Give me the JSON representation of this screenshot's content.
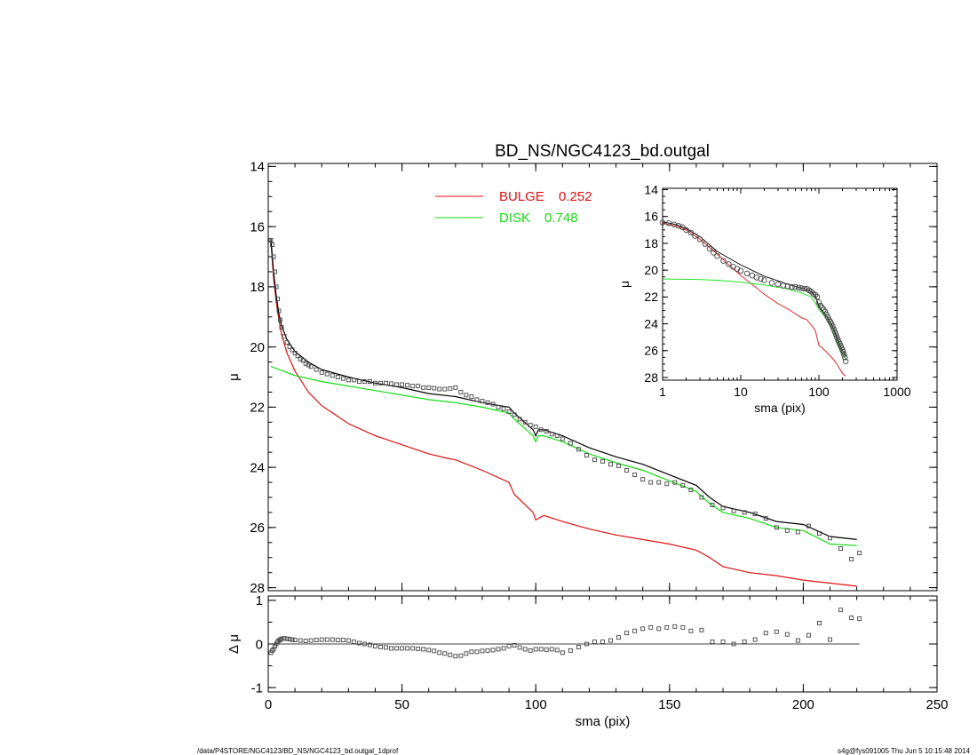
{
  "title": "BD_NS/NGC4123_bd.outgal",
  "footer": {
    "path": "/data/P4STORE/NGC4123/BD_NS/NGC4123_bd.outgal_1dprof",
    "stamp": "s4g@fys091005  Thu Jun  5 10:15:48 2014"
  },
  "colors": {
    "bulge": "#dd1111",
    "disk": "#11dd11",
    "total": "#000000",
    "data": "#555555"
  },
  "chart_data": [
    {
      "id": "main",
      "type": "line",
      "title": "BD_NS/NGC4123_bd.outgal",
      "ylabel": "μ",
      "xlim": [
        0,
        250
      ],
      "ylim": [
        28.1,
        13.9
      ],
      "y_inverted": true,
      "yticks": [
        14,
        16,
        18,
        20,
        22,
        24,
        26,
        28
      ],
      "legend": {
        "placement": "top-center",
        "entries": [
          {
            "name": "BULGE",
            "value": "0.252",
            "color": "#dd1111"
          },
          {
            "name": "DISK",
            "value": "0.748",
            "color": "#11dd11"
          }
        ]
      },
      "series": [
        {
          "name": "BULGE",
          "color": "#dd1111",
          "x": [
            1,
            2,
            3,
            4,
            5,
            7,
            10,
            15,
            20,
            30,
            40,
            50,
            60,
            67,
            70,
            80,
            90,
            92,
            99,
            100,
            103,
            110,
            120,
            130,
            140,
            150,
            160,
            165,
            170,
            180,
            190,
            200,
            210,
            220
          ],
          "y": [
            16.5,
            17.7,
            18.5,
            19.1,
            19.6,
            20.2,
            20.8,
            21.5,
            21.95,
            22.55,
            22.95,
            23.25,
            23.55,
            23.7,
            23.75,
            24.1,
            24.5,
            24.9,
            25.5,
            25.75,
            25.6,
            25.8,
            26.05,
            26.25,
            26.4,
            26.55,
            26.75,
            27.0,
            27.3,
            27.5,
            27.6,
            27.75,
            27.85,
            27.95
          ]
        },
        {
          "name": "DISK",
          "color": "#11dd11",
          "x": [
            1,
            10,
            20,
            40,
            60,
            70,
            80,
            90,
            92,
            99,
            100,
            101,
            103,
            110,
            120,
            130,
            140,
            150,
            160,
            165,
            170,
            180,
            190,
            200,
            210,
            220
          ],
          "y": [
            20.65,
            20.95,
            21.15,
            21.45,
            21.75,
            21.85,
            22.0,
            22.2,
            22.4,
            22.95,
            23.15,
            22.95,
            22.95,
            23.15,
            23.55,
            23.85,
            24.1,
            24.45,
            24.8,
            25.2,
            25.5,
            25.7,
            26.0,
            26.1,
            26.55,
            26.6
          ]
        },
        {
          "name": "Total",
          "color": "#000000",
          "x": [
            1,
            2,
            3,
            4,
            5,
            7,
            10,
            15,
            20,
            30,
            40,
            50,
            60,
            70,
            80,
            90,
            92,
            99,
            100,
            101,
            103,
            110,
            120,
            130,
            140,
            150,
            160,
            165,
            170,
            180,
            190,
            200,
            210,
            220
          ],
          "y": [
            16.4,
            17.5,
            18.3,
            18.9,
            19.3,
            19.75,
            20.15,
            20.5,
            20.75,
            21.0,
            21.2,
            21.35,
            21.55,
            21.65,
            21.85,
            22.0,
            22.2,
            22.75,
            22.95,
            22.75,
            22.75,
            22.95,
            23.35,
            23.65,
            23.9,
            24.25,
            24.6,
            25.0,
            25.3,
            25.5,
            25.8,
            25.9,
            26.3,
            26.4
          ]
        }
      ],
      "points": {
        "name": "data",
        "marker": "square",
        "x": [
          1,
          1.5,
          2,
          2.5,
          3,
          3.5,
          4,
          4.5,
          5,
          6,
          7,
          8,
          9,
          10,
          11,
          12,
          13,
          14,
          15,
          16,
          18,
          20,
          22,
          24,
          26,
          28,
          30,
          32,
          34,
          36,
          38,
          40,
          42,
          44,
          46,
          48,
          50,
          52,
          54,
          56,
          58,
          60,
          62,
          64,
          66,
          68,
          70,
          72,
          74,
          76,
          78,
          80,
          82,
          84,
          86,
          88,
          90,
          92,
          94,
          96,
          98,
          100,
          102,
          104,
          106,
          108,
          110,
          113,
          116,
          119,
          122,
          125,
          128,
          131,
          134,
          137,
          140,
          143,
          146,
          149,
          152,
          155,
          158,
          162,
          166,
          170,
          174,
          178,
          182,
          186,
          190,
          194,
          198,
          202,
          206,
          210,
          214,
          218,
          221
        ],
        "y": [
          16.45,
          16.6,
          17.0,
          17.5,
          18.0,
          18.4,
          18.8,
          19.1,
          19.35,
          19.65,
          19.85,
          20.0,
          20.1,
          20.2,
          20.3,
          20.4,
          20.45,
          20.55,
          20.6,
          20.65,
          20.75,
          20.85,
          20.9,
          20.95,
          21.0,
          21.05,
          21.1,
          21.1,
          21.15,
          21.15,
          21.15,
          21.2,
          21.2,
          21.2,
          21.22,
          21.25,
          21.25,
          21.27,
          21.3,
          21.3,
          21.35,
          21.35,
          21.37,
          21.4,
          21.4,
          21.38,
          21.35,
          21.5,
          21.6,
          21.65,
          21.75,
          21.8,
          21.85,
          21.9,
          22.0,
          22.05,
          22.15,
          22.25,
          22.4,
          22.5,
          22.6,
          22.65,
          22.75,
          22.8,
          22.9,
          22.95,
          23.05,
          23.2,
          23.4,
          23.6,
          23.75,
          23.8,
          23.9,
          23.95,
          24.1,
          24.25,
          24.4,
          24.5,
          24.5,
          24.55,
          24.5,
          24.6,
          24.75,
          25.0,
          25.25,
          25.35,
          25.45,
          25.5,
          25.55,
          25.7,
          26.0,
          26.1,
          26.15,
          25.95,
          26.2,
          26.35,
          26.7,
          27.05,
          26.85
        ]
      }
    },
    {
      "id": "residual",
      "type": "scatter",
      "xlabel": "sma (pix)",
      "ylabel": "Δ μ",
      "xlim": [
        0,
        250
      ],
      "ylim": [
        -1.1,
        1.1
      ],
      "xticks": [
        0,
        50,
        100,
        150,
        200,
        250
      ],
      "yticks": [
        -1,
        0,
        1
      ],
      "zero_line": true,
      "points": {
        "marker": "square",
        "x": [
          1,
          1.5,
          2,
          2.5,
          3,
          3.5,
          4,
          4.5,
          5,
          6,
          7,
          8,
          9,
          10,
          12,
          14,
          16,
          18,
          20,
          22,
          24,
          26,
          28,
          30,
          32,
          34,
          36,
          38,
          40,
          42,
          44,
          46,
          48,
          50,
          52,
          54,
          56,
          58,
          60,
          62,
          64,
          66,
          68,
          70,
          72,
          74,
          76,
          78,
          80,
          82,
          84,
          86,
          88,
          90,
          92,
          94,
          96,
          98,
          100,
          102,
          104,
          106,
          108,
          110,
          113,
          116,
          119,
          122,
          125,
          128,
          131,
          134,
          137,
          140,
          143,
          146,
          149,
          152,
          155,
          158,
          162,
          166,
          170,
          174,
          178,
          182,
          186,
          190,
          194,
          198,
          202,
          206,
          210,
          214,
          218,
          221
        ],
        "y": [
          -0.2,
          -0.15,
          -0.12,
          -0.05,
          0.0,
          0.05,
          0.08,
          0.1,
          0.12,
          0.13,
          0.12,
          0.11,
          0.1,
          0.09,
          0.08,
          0.07,
          0.08,
          0.09,
          0.1,
          0.1,
          0.1,
          0.09,
          0.09,
          0.08,
          0.05,
          0.02,
          0.0,
          -0.02,
          -0.05,
          -0.07,
          -0.08,
          -0.1,
          -0.1,
          -0.1,
          -0.1,
          -0.1,
          -0.11,
          -0.12,
          -0.14,
          -0.16,
          -0.2,
          -0.22,
          -0.25,
          -0.28,
          -0.27,
          -0.22,
          -0.18,
          -0.18,
          -0.16,
          -0.15,
          -0.14,
          -0.12,
          -0.1,
          -0.05,
          -0.03,
          -0.08,
          -0.12,
          -0.15,
          -0.12,
          -0.12,
          -0.13,
          -0.12,
          -0.14,
          -0.2,
          -0.15,
          -0.07,
          0.0,
          0.05,
          0.05,
          0.08,
          0.15,
          0.25,
          0.3,
          0.35,
          0.38,
          0.35,
          0.38,
          0.4,
          0.38,
          0.3,
          0.32,
          0.05,
          0.05,
          0.0,
          0.05,
          0.1,
          0.25,
          0.28,
          0.22,
          0.08,
          0.2,
          0.48,
          0.1,
          0.78,
          0.6,
          0.58
        ]
      }
    },
    {
      "id": "inset",
      "type": "line",
      "xlabel": "sma (pix)",
      "ylabel": "μ",
      "xscale": "log",
      "xlim": [
        1,
        1000
      ],
      "ylim": [
        28.2,
        13.9
      ],
      "y_inverted": true,
      "xticks": [
        1,
        10,
        100,
        1000
      ],
      "yticks": [
        14,
        16,
        18,
        20,
        22,
        24,
        26,
        28
      ],
      "series": [
        {
          "name": "BULGE",
          "color": "#dd1111",
          "x": [
            1,
            1.5,
            2,
            3,
            5,
            7,
            10,
            15,
            20,
            30,
            40,
            50,
            60,
            70,
            80,
            90,
            100,
            110,
            130,
            150,
            170,
            200,
            220
          ],
          "y": [
            16.5,
            16.7,
            17.0,
            17.7,
            18.8,
            19.6,
            20.4,
            21.2,
            21.8,
            22.5,
            22.9,
            23.25,
            23.55,
            23.7,
            24.1,
            24.5,
            25.6,
            25.8,
            26.2,
            26.6,
            27.0,
            27.7,
            27.9
          ]
        },
        {
          "name": "DISK",
          "color": "#11dd11",
          "x": [
            1,
            3,
            5,
            10,
            20,
            40,
            60,
            80,
            100,
            110,
            130,
            150,
            170,
            200,
            220
          ],
          "y": [
            20.65,
            20.7,
            20.75,
            20.9,
            21.1,
            21.4,
            21.7,
            22.0,
            22.9,
            23.2,
            23.8,
            24.4,
            25.2,
            26.2,
            26.6
          ]
        },
        {
          "name": "Total",
          "color": "#000000",
          "x": [
            1,
            1.5,
            2,
            3,
            5,
            7,
            10,
            15,
            20,
            30,
            40,
            50,
            60,
            70,
            80,
            90,
            100,
            110,
            130,
            150,
            170,
            200,
            220
          ],
          "y": [
            16.4,
            16.6,
            16.9,
            17.5,
            18.6,
            19.1,
            19.6,
            20.1,
            20.45,
            20.8,
            21.05,
            21.2,
            21.35,
            21.45,
            21.6,
            21.9,
            22.7,
            23.0,
            23.6,
            24.2,
            25.0,
            26.0,
            26.4
          ]
        }
      ],
      "points": {
        "marker": "circle",
        "x": [
          1,
          1.2,
          1.4,
          1.6,
          1.8,
          2,
          2.3,
          2.6,
          3,
          3.5,
          4,
          4.5,
          5,
          6,
          7,
          8,
          9,
          10,
          12,
          14,
          16,
          18,
          20,
          25,
          30,
          35,
          40,
          45,
          50,
          55,
          60,
          65,
          70,
          75,
          80,
          85,
          90,
          95,
          100,
          105,
          110,
          115,
          120,
          125,
          130,
          135,
          140,
          145,
          150,
          155,
          160,
          165,
          170,
          175,
          180,
          185,
          190,
          195,
          200,
          205,
          210,
          215,
          220
        ],
        "y": [
          16.45,
          16.5,
          16.6,
          16.7,
          16.8,
          17.0,
          17.2,
          17.45,
          17.7,
          18.05,
          18.4,
          18.7,
          18.95,
          19.3,
          19.55,
          19.75,
          19.9,
          20.05,
          20.25,
          20.4,
          20.55,
          20.65,
          20.75,
          20.95,
          21.05,
          21.15,
          21.2,
          21.25,
          21.25,
          21.3,
          21.35,
          21.38,
          21.4,
          21.5,
          21.6,
          21.75,
          21.85,
          22.0,
          22.4,
          22.65,
          22.8,
          22.95,
          23.1,
          23.3,
          23.5,
          23.7,
          23.85,
          24.0,
          24.2,
          24.4,
          24.6,
          24.8,
          25.0,
          25.2,
          25.35,
          25.5,
          25.65,
          25.8,
          25.95,
          26.1,
          26.3,
          26.5,
          26.8
        ]
      }
    }
  ]
}
